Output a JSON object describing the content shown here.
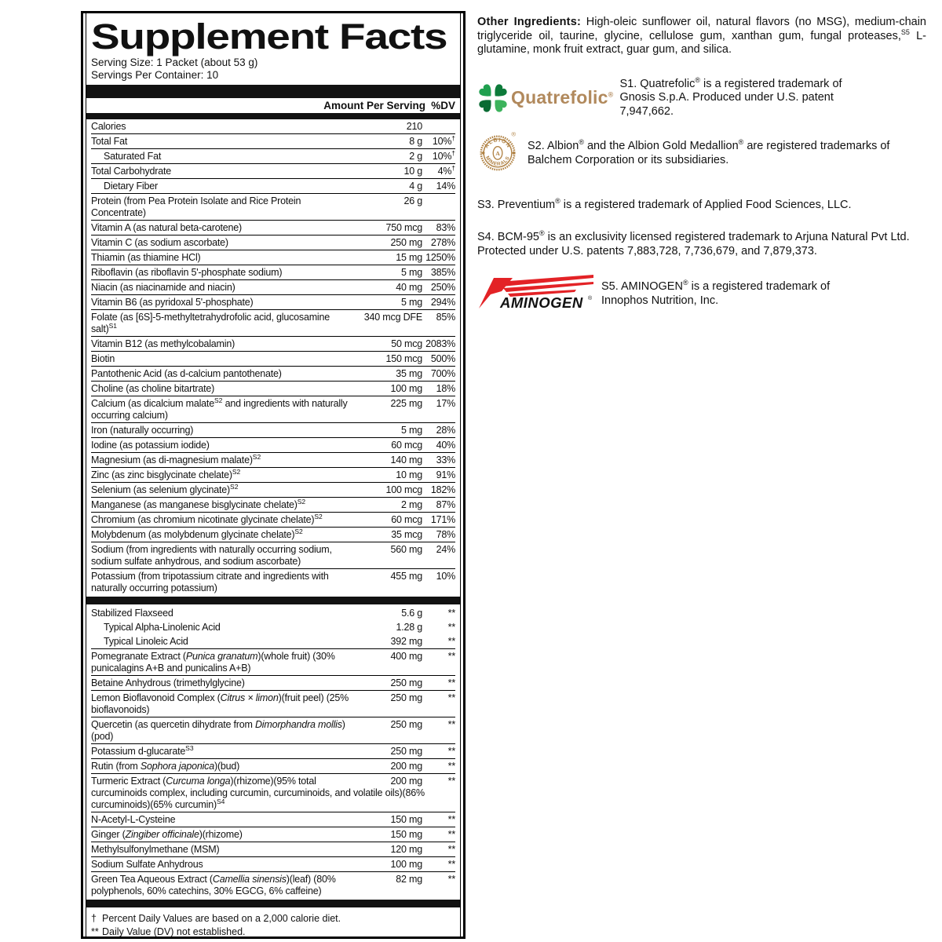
{
  "colors": {
    "clover_tl": "#1fa04f",
    "clover_tr": "#0d7b3a",
    "clover_bl": "#096b33",
    "clover_br": "#3cb35c",
    "quatrefolic_tan": "#b1895c",
    "albion_gold": "#b08244",
    "aminogen_red": "#e32226",
    "bar_black": "#121212"
  },
  "facts": {
    "title": "Supplement Facts",
    "serving_size": "Serving Size: 1 Packet (about 53 g)",
    "servings_per_container": "Servings Per Container: 10",
    "header": {
      "amount": "Amount Per Serving",
      "dv": "%DV"
    },
    "rows": [
      {
        "name": "Calories",
        "amount": "210",
        "dv": "",
        "noline": 1
      },
      {
        "name": "Total Fat",
        "amount": "8 g",
        "dv": [
          {
            "t": "10%"
          },
          {
            "t": "†",
            "s": 1
          }
        ]
      },
      {
        "name": "Saturated Fat",
        "indent": 1,
        "amount": "2 g",
        "dv": [
          {
            "t": "10%"
          },
          {
            "t": "†",
            "s": 1
          }
        ]
      },
      {
        "name": "Total Carbohydrate",
        "amount": "10 g",
        "dv": [
          {
            "t": "4%"
          },
          {
            "t": "†",
            "s": 1
          }
        ]
      },
      {
        "name": "Dietary Fiber",
        "indent": 1,
        "amount": "4 g",
        "dv": "14%"
      },
      {
        "name": "Protein (from Pea Protein Isolate and Rice Protein Concentrate)",
        "amount": "26 g",
        "dv": ""
      },
      {
        "name": "Vitamin A (as natural beta-carotene)",
        "amount": "750 mcg",
        "dv": "83%"
      },
      {
        "name": "Vitamin C (as sodium ascorbate)",
        "amount": "250 mg",
        "dv": "278%"
      },
      {
        "name": "Thiamin (as thiamine HCl)",
        "amount": "15 mg",
        "dv": "1250%"
      },
      {
        "name": "Riboflavin (as riboflavin 5'-phosphate sodium)",
        "amount": "5 mg",
        "dv": "385%"
      },
      {
        "name": "Niacin (as niacinamide and niacin)",
        "amount": "40 mg",
        "dv": "250%"
      },
      {
        "name": "Vitamin B6 (as pyridoxal 5'-phosphate)",
        "amount": "5 mg",
        "dv": "294%"
      },
      {
        "name": [
          {
            "t": "Folate (as [6S]-5-methyltetrahydrofolic acid, glucosamine salt)"
          },
          {
            "t": "S1",
            "s": 1
          }
        ],
        "amount": "340 mcg DFE",
        "dv": "85%"
      },
      {
        "name": "Vitamin B12 (as methylcobalamin)",
        "amount": "50 mcg",
        "dv": "2083%"
      },
      {
        "name": "Biotin",
        "amount": "150 mcg",
        "dv": "500%"
      },
      {
        "name": "Pantothenic Acid (as d-calcium pantothenate)",
        "amount": "35 mg",
        "dv": "700%"
      },
      {
        "name": "Choline (as choline bitartrate)",
        "amount": "100 mg",
        "dv": "18%"
      },
      {
        "name": [
          {
            "t": "Calcium (as dicalcium malate"
          },
          {
            "t": "S2",
            "s": 1
          },
          {
            "t": " and ingredients with naturally occurring calcium)"
          }
        ],
        "amount": "225 mg",
        "dv": "17%"
      },
      {
        "name": "Iron (naturally occurring)",
        "amount": "5 mg",
        "dv": "28%"
      },
      {
        "name": "Iodine (as potassium iodide)",
        "amount": "60 mcg",
        "dv": "40%"
      },
      {
        "name": [
          {
            "t": "Magnesium (as di-magnesium malate)"
          },
          {
            "t": "S2",
            "s": 1
          }
        ],
        "amount": "140 mg",
        "dv": "33%"
      },
      {
        "name": [
          {
            "t": "Zinc (as zinc bisglycinate chelate)"
          },
          {
            "t": "S2",
            "s": 1
          }
        ],
        "amount": "10 mg",
        "dv": "91%"
      },
      {
        "name": [
          {
            "t": "Selenium (as selenium glycinate)"
          },
          {
            "t": "S2",
            "s": 1
          }
        ],
        "amount": "100 mcg",
        "dv": "182%"
      },
      {
        "name": [
          {
            "t": "Manganese (as manganese bisglycinate chelate)"
          },
          {
            "t": "S2",
            "s": 1
          }
        ],
        "amount": "2 mg",
        "dv": "87%"
      },
      {
        "name": [
          {
            "t": "Chromium (as chromium nicotinate glycinate chelate)"
          },
          {
            "t": "S2",
            "s": 1
          }
        ],
        "amount": "60 mcg",
        "dv": "171%"
      },
      {
        "name": [
          {
            "t": "Molybdenum (as molybdenum glycinate chelate)"
          },
          {
            "t": "S2",
            "s": 1
          }
        ],
        "amount": "35 mcg",
        "dv": "78%"
      },
      {
        "name": "Sodium (from ingredients with naturally occurring sodium, sodium sulfate anhydrous, and sodium ascorbate)",
        "amount": "560 mg",
        "dv": "24%"
      },
      {
        "name": "Potassium (from tripotassium citrate and ingredients with naturally occurring potassium)",
        "amount": "455 mg",
        "dv": "10%"
      },
      {
        "type": "bar"
      },
      {
        "name": "Stabilized Flaxseed",
        "amount": "5.6 g",
        "dv": "**",
        "noline": 1
      },
      {
        "name": "Typical Alpha-Linolenic Acid",
        "indent": 1,
        "amount": "1.28 g",
        "dv": "**",
        "noline": 1
      },
      {
        "name": "Typical Linoleic Acid",
        "indent": 1,
        "amount": "392 mg",
        "dv": "**",
        "noline": 1
      },
      {
        "name": [
          {
            "t": "Pomegranate Extract ("
          },
          {
            "t": "Punica granatum",
            "i": 1
          },
          {
            "t": ")(whole fruit) (30% punicalagins A+B and punicalins A+B)"
          }
        ],
        "amount": "400 mg",
        "dv": "**"
      },
      {
        "name": "Betaine Anhydrous (trimethylglycine)",
        "amount": "250 mg",
        "dv": "**"
      },
      {
        "name": [
          {
            "t": "Lemon Bioflavonoid Complex ("
          },
          {
            "t": "Citrus × limon",
            "i": 1
          },
          {
            "t": ")(fruit peel) (25% bioflavonoids)"
          }
        ],
        "amount": "250 mg",
        "dv": "**"
      },
      {
        "name": [
          {
            "t": "Quercetin (as quercetin dihydrate from "
          },
          {
            "t": "Dimorphandra mollis",
            "i": 1
          },
          {
            "t": ")(pod)"
          }
        ],
        "amount": "250 mg",
        "dv": "**"
      },
      {
        "name": [
          {
            "t": "Potassium d-glucarate"
          },
          {
            "t": "S3",
            "s": 1
          }
        ],
        "amount": "250 mg",
        "dv": "**"
      },
      {
        "name": [
          {
            "t": "Rutin (from "
          },
          {
            "t": "Sophora japonica",
            "i": 1
          },
          {
            "t": ")(bud)"
          }
        ],
        "amount": "200 mg",
        "dv": "**"
      },
      {
        "name": [
          {
            "t": "Turmeric Extract ("
          },
          {
            "t": "Curcuma longa",
            "i": 1
          },
          {
            "t": ")(rhizome)(95% total curcuminoids complex, including curcumin, curcuminoids, and volatile oils)(86% curcuminoids)(65% curcumin)"
          },
          {
            "t": "S4",
            "s": 1
          }
        ],
        "amount": "200 mg",
        "dv": "**"
      },
      {
        "name": "N-Acetyl-L-Cysteine",
        "amount": "150 mg",
        "dv": "**"
      },
      {
        "name": [
          {
            "t": "Ginger ("
          },
          {
            "t": "Zingiber officinale",
            "i": 1
          },
          {
            "t": ")(rhizome)"
          }
        ],
        "amount": "150 mg",
        "dv": "**"
      },
      {
        "name": "Methylsulfonylmethane (MSM)",
        "amount": "120 mg",
        "dv": "**"
      },
      {
        "name": "Sodium Sulfate Anhydrous",
        "amount": "100 mg",
        "dv": "**"
      },
      {
        "name": [
          {
            "t": "Green Tea Aqueous Extract ("
          },
          {
            "t": "Camellia sinensis",
            "i": 1
          },
          {
            "t": ")(leaf) (80% polyphenols, 60% catechins, 30% EGCG, 6% caffeine)"
          }
        ],
        "amount": "82 mg",
        "dv": "**"
      },
      {
        "type": "bar"
      }
    ],
    "footnotes": [
      {
        "sym": "†",
        "text": "Percent Daily Values are based on a 2,000 calorie diet."
      },
      {
        "sym": "**",
        "text": "Daily Value (DV) not established."
      }
    ]
  },
  "right_panel": {
    "other_ingredients": [
      {
        "t": "Other Ingredients:",
        "b": 1
      },
      {
        "t": " High-oleic sunflower oil, natural flavors (no MSG), medium-chain triglyceride oil, taurine, glycine, cellulose gum, xanthan gum, fungal proteases,"
      },
      {
        "t": "S5",
        "s": 1
      },
      {
        "t": " L-glutamine, monk fruit extract, guar gum, and silica."
      }
    ],
    "notes": [
      {
        "id": "s1",
        "logo": "quatrefolic",
        "text": [
          {
            "t": "S1. Quatrefolic"
          },
          {
            "t": "®",
            "s": 1
          },
          {
            "t": " is a registered trademark of Gnosis S.p.A. Produced under U.S. patent 7,947,662."
          }
        ]
      },
      {
        "id": "s2",
        "logo": "albion",
        "text": [
          {
            "t": "S2. Albion"
          },
          {
            "t": "®",
            "s": 1
          },
          {
            "t": " and the Albion Gold Medallion"
          },
          {
            "t": "®",
            "s": 1
          },
          {
            "t": " are registered trademarks of Balchem Corporation or its subsidiaries."
          }
        ]
      },
      {
        "id": "s3",
        "text": [
          {
            "t": "S3. Preventium"
          },
          {
            "t": "®",
            "s": 1
          },
          {
            "t": " is a registered trademark of Applied Food Sciences, LLC."
          }
        ]
      },
      {
        "id": "s4",
        "text": [
          {
            "t": "S4. BCM-95"
          },
          {
            "t": "®",
            "s": 1
          },
          {
            "t": " is an exclusivity licensed registered trademark to Arjuna Natural Pvt Ltd. Protected under U.S. patents 7,883,728, 7,736,679, and 7,879,373."
          }
        ]
      },
      {
        "id": "s5",
        "logo": "aminogen",
        "text": [
          {
            "t": "S5. AMINOGEN"
          },
          {
            "t": "®",
            "s": 1
          },
          {
            "t": " is a registered trademark of Innophos Nutrition, Inc."
          }
        ]
      }
    ]
  },
  "logos": {
    "quatrefolic_wordmark": "Quatrefolic",
    "quatrefolic_reg": "®",
    "albion_top": "ALBION",
    "albion_bottom": "MINERALS",
    "albion_center": "A",
    "albion_reg": "®",
    "aminogen_wordmark": "AMINOGEN",
    "aminogen_reg": "®"
  }
}
